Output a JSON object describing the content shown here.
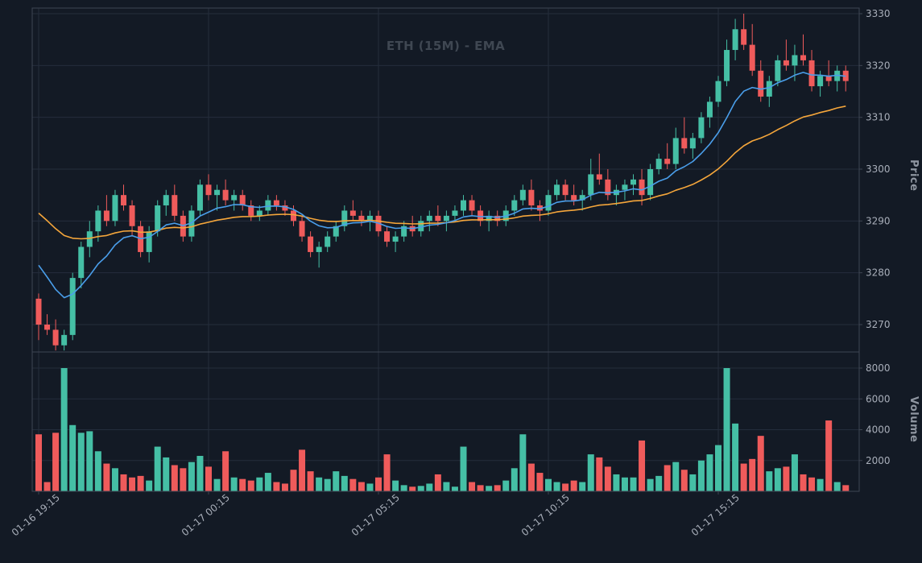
{
  "meta": {
    "title": "ETH (15M) - EMA"
  },
  "axes": {
    "price_label": "Price",
    "volume_label": "Volume"
  },
  "chart_data": {
    "type": "candlestick",
    "symbol": "ETH",
    "interval": "15M",
    "overlay": "EMA",
    "title": "ETH (15M) - EMA",
    "x_tick_labels": [
      "01-16 19:15",
      "01-17 00:15",
      "01-17 05:15",
      "01-17 10:15",
      "01-17 15:15"
    ],
    "x_tick_indices": [
      0,
      20,
      40,
      60,
      80
    ],
    "price_ticks": [
      3270,
      3280,
      3290,
      3300,
      3310,
      3320,
      3330
    ],
    "volume_ticks": [
      2000,
      4000,
      6000,
      8000
    ],
    "price_range": [
      3264,
      3331
    ],
    "volume_range": [
      0,
      8300
    ],
    "grid": true,
    "legend": "none",
    "ema": {
      "fast": {
        "span": 10,
        "color": "#4a9eea",
        "start": 3284
      },
      "slow": {
        "span": 30,
        "color": "#f5a63b",
        "start": 3293
      }
    },
    "colors": {
      "up": "#45bfa5",
      "down": "#ef5b5b",
      "background": "#131a25",
      "grid": "#242d3c",
      "spine": "#3e4552",
      "tick_label": "#a8aeb9",
      "axis_label": "#8f96a1",
      "title": "#3f4752"
    },
    "candles_format": [
      "open",
      "high",
      "low",
      "close",
      "volume"
    ],
    "candles": [
      [
        3275,
        3276,
        3267,
        3270,
        3700
      ],
      [
        3270,
        3272,
        3268,
        3269,
        600
      ],
      [
        3269,
        3271,
        3265,
        3266,
        3800
      ],
      [
        3266,
        3269,
        3265,
        3268,
        8000
      ],
      [
        3268,
        3280,
        3267,
        3279,
        4300
      ],
      [
        3279,
        3286,
        3277,
        3285,
        3800
      ],
      [
        3285,
        3290,
        3283,
        3288,
        3900
      ],
      [
        3288,
        3293,
        3286,
        3292,
        2600
      ],
      [
        3292,
        3295,
        3289,
        3290,
        1800
      ],
      [
        3290,
        3296,
        3289,
        3295,
        1500
      ],
      [
        3295,
        3297,
        3292,
        3293,
        1100
      ],
      [
        3293,
        3294,
        3287,
        3289,
        900
      ],
      [
        3289,
        3290,
        3283,
        3284,
        1000
      ],
      [
        3284,
        3289,
        3282,
        3288,
        700
      ],
      [
        3288,
        3294,
        3287,
        3293,
        2900
      ],
      [
        3293,
        3296,
        3291,
        3295,
        2200
      ],
      [
        3295,
        3297,
        3290,
        3291,
        1700
      ],
      [
        3291,
        3292,
        3286,
        3287,
        1500
      ],
      [
        3287,
        3293,
        3286,
        3292,
        1900
      ],
      [
        3292,
        3298,
        3291,
        3297,
        2300
      ],
      [
        3297,
        3299,
        3294,
        3295,
        1600
      ],
      [
        3295,
        3297,
        3292,
        3296,
        800
      ],
      [
        3296,
        3298,
        3293,
        3294,
        2600
      ],
      [
        3294,
        3296,
        3292,
        3295,
        900
      ],
      [
        3295,
        3296,
        3292,
        3293,
        800
      ],
      [
        3293,
        3294,
        3290,
        3291,
        700
      ],
      [
        3291,
        3293,
        3290,
        3292,
        900
      ],
      [
        3292,
        3295,
        3291,
        3294,
        1200
      ],
      [
        3294,
        3295,
        3292,
        3293,
        600
      ],
      [
        3293,
        3294,
        3291,
        3292,
        500
      ],
      [
        3292,
        3293,
        3289,
        3290,
        1400
      ],
      [
        3290,
        3291,
        3286,
        3287,
        2700
      ],
      [
        3287,
        3288,
        3283,
        3284,
        1300
      ],
      [
        3284,
        3286,
        3281,
        3285,
        900
      ],
      [
        3285,
        3288,
        3284,
        3287,
        800
      ],
      [
        3287,
        3290,
        3286,
        3289,
        1300
      ],
      [
        3289,
        3293,
        3288,
        3292,
        1000
      ],
      [
        3292,
        3294,
        3290,
        3291,
        800
      ],
      [
        3291,
        3292,
        3289,
        3290,
        600
      ],
      [
        3290,
        3292,
        3288,
        3291,
        500
      ],
      [
        3291,
        3292,
        3287,
        3288,
        900
      ],
      [
        3288,
        3289,
        3285,
        3286,
        2400
      ],
      [
        3286,
        3288,
        3284,
        3287,
        700
      ],
      [
        3287,
        3290,
        3286,
        3289,
        400
      ],
      [
        3289,
        3291,
        3287,
        3288,
        300
      ],
      [
        3288,
        3291,
        3287,
        3290,
        350
      ],
      [
        3290,
        3292,
        3288,
        3291,
        500
      ],
      [
        3291,
        3293,
        3289,
        3290,
        1100
      ],
      [
        3290,
        3292,
        3288,
        3291,
        600
      ],
      [
        3291,
        3293,
        3290,
        3292,
        300
      ],
      [
        3292,
        3295,
        3291,
        3294,
        2900
      ],
      [
        3294,
        3295,
        3291,
        3292,
        600
      ],
      [
        3292,
        3293,
        3289,
        3290,
        400
      ],
      [
        3290,
        3292,
        3288,
        3291,
        350
      ],
      [
        3291,
        3292,
        3289,
        3290,
        400
      ],
      [
        3290,
        3293,
        3289,
        3292,
        700
      ],
      [
        3292,
        3295,
        3291,
        3294,
        1500
      ],
      [
        3294,
        3297,
        3293,
        3296,
        3700
      ],
      [
        3296,
        3298,
        3292,
        3293,
        1800
      ],
      [
        3293,
        3294,
        3290,
        3292,
        1200
      ],
      [
        3292,
        3296,
        3291,
        3295,
        800
      ],
      [
        3295,
        3298,
        3294,
        3297,
        600
      ],
      [
        3297,
        3298,
        3294,
        3295,
        500
      ],
      [
        3295,
        3297,
        3293,
        3294,
        700
      ],
      [
        3294,
        3296,
        3292,
        3295,
        600
      ],
      [
        3295,
        3302,
        3294,
        3299,
        2400
      ],
      [
        3299,
        3303,
        3297,
        3298,
        2200
      ],
      [
        3298,
        3300,
        3294,
        3295,
        1600
      ],
      [
        3295,
        3297,
        3293,
        3296,
        1100
      ],
      [
        3296,
        3298,
        3294,
        3297,
        900
      ],
      [
        3297,
        3299,
        3295,
        3298,
        900
      ],
      [
        3298,
        3300,
        3293,
        3295,
        3300
      ],
      [
        3295,
        3301,
        3294,
        3300,
        800
      ],
      [
        3300,
        3303,
        3299,
        3302,
        1000
      ],
      [
        3302,
        3305,
        3300,
        3301,
        1700
      ],
      [
        3301,
        3308,
        3300,
        3306,
        1900
      ],
      [
        3306,
        3310,
        3303,
        3304,
        1400
      ],
      [
        3304,
        3307,
        3302,
        3306,
        1100
      ],
      [
        3306,
        3311,
        3305,
        3310,
        2000
      ],
      [
        3310,
        3314,
        3308,
        3313,
        2400
      ],
      [
        3313,
        3318,
        3312,
        3317,
        3000
      ],
      [
        3317,
        3325,
        3316,
        3323,
        8000
      ],
      [
        3323,
        3329,
        3321,
        3327,
        4400
      ],
      [
        3327,
        3330,
        3323,
        3324,
        1800
      ],
      [
        3324,
        3328,
        3318,
        3319,
        2100
      ],
      [
        3319,
        3321,
        3313,
        3314,
        3600
      ],
      [
        3314,
        3318,
        3312,
        3317,
        1300
      ],
      [
        3317,
        3322,
        3316,
        3321,
        1500
      ],
      [
        3321,
        3325,
        3319,
        3320,
        1600
      ],
      [
        3320,
        3324,
        3317,
        3322,
        2400
      ],
      [
        3322,
        3326,
        3320,
        3321,
        1100
      ],
      [
        3321,
        3323,
        3315,
        3316,
        900
      ],
      [
        3316,
        3319,
        3314,
        3318,
        800
      ],
      [
        3318,
        3321,
        3316,
        3317,
        4600
      ],
      [
        3317,
        3320,
        3315,
        3319,
        600
      ],
      [
        3319,
        3320,
        3315,
        3317,
        400
      ]
    ]
  }
}
